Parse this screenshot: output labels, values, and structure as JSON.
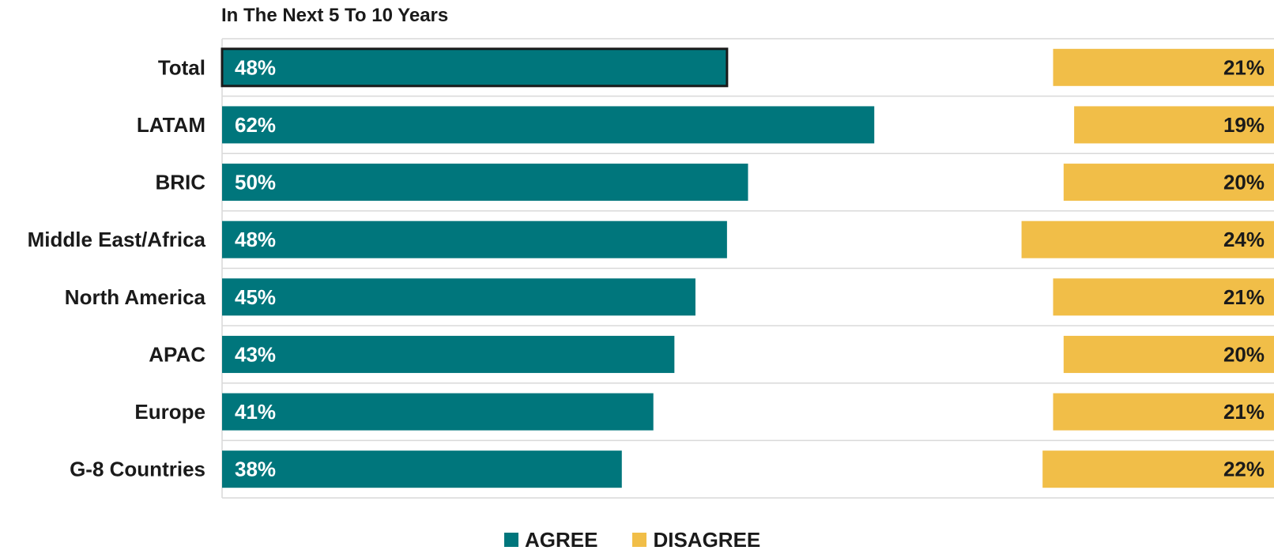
{
  "chart_data": {
    "type": "bar",
    "orientation": "horizontal",
    "subtitle": "In The Next 5 To 10 Years",
    "categories": [
      "Total",
      "LATAM",
      "BRIC",
      "Middle East/Africa",
      "North America",
      "APAC",
      "Europe",
      "G-8 Countries"
    ],
    "series": [
      {
        "name": "AGREE",
        "color": "#00767C",
        "values": [
          48,
          62,
          50,
          48,
          45,
          43,
          41,
          38
        ],
        "labels": [
          "48%",
          "62%",
          "50%",
          "48%",
          "45%",
          "43%",
          "41%",
          "38%"
        ],
        "anchor": "left"
      },
      {
        "name": "DISAGREE",
        "color": "#F1BE48",
        "values": [
          21,
          19,
          20,
          24,
          21,
          20,
          21,
          22
        ],
        "labels": [
          "21%",
          "19%",
          "20%",
          "24%",
          "21%",
          "20%",
          "21%",
          "22%"
        ],
        "anchor": "right"
      }
    ],
    "highlighted_category": "Total",
    "value_unit": "%",
    "xlim": [
      0,
      100
    ],
    "grid": true,
    "legend_position": "bottom-center"
  }
}
